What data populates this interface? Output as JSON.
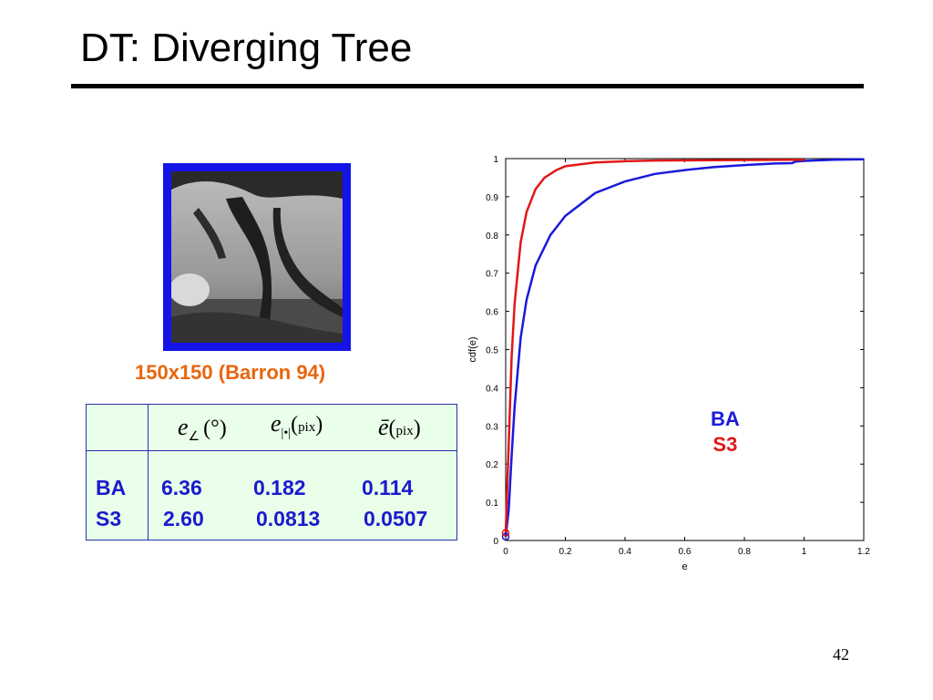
{
  "slide": {
    "title": "DT: Diverging Tree",
    "page_number": "42"
  },
  "image_caption": "150x150 (Barron 94)",
  "table": {
    "headers": [
      {
        "symbol": "e",
        "subscript": "∠",
        "unit": "(°)"
      },
      {
        "symbol": "e",
        "subscript": "|•|",
        "unit": "pix"
      },
      {
        "symbol": "ē",
        "subscript": "",
        "unit": "pix"
      }
    ],
    "rows": [
      {
        "label": "BA",
        "values": [
          "6.36",
          "0.182",
          "0.114"
        ]
      },
      {
        "label": "S3",
        "values": [
          "2.60",
          "0.0813",
          "0.0507"
        ]
      }
    ]
  },
  "colors": {
    "BA": "#1a1adc",
    "S3": "#e01818",
    "frame": "#1414e8",
    "caption": "#e8660e"
  },
  "chart_data": {
    "type": "line",
    "xlabel": "e",
    "ylabel": "cdf(e)",
    "xlim": [
      0,
      1.2
    ],
    "ylim": [
      0,
      1
    ],
    "xticks": [
      "0",
      "0.2",
      "0.4",
      "0.6",
      "0.8",
      "1",
      "1.2"
    ],
    "yticks": [
      "0",
      "0.1",
      "0.2",
      "0.3",
      "0.4",
      "0.5",
      "0.6",
      "0.7",
      "0.8",
      "0.9",
      "1"
    ],
    "series": [
      {
        "name": "BA",
        "color": "#1a1adc",
        "x": [
          0,
          0.01,
          0.02,
          0.03,
          0.05,
          0.07,
          0.1,
          0.15,
          0.2,
          0.3,
          0.4,
          0.5,
          0.6,
          0.7,
          0.8,
          0.9,
          0.96,
          0.97,
          1.0,
          1.1,
          1.2
        ],
        "y": [
          0.01,
          0.08,
          0.22,
          0.35,
          0.53,
          0.63,
          0.72,
          0.8,
          0.85,
          0.91,
          0.94,
          0.96,
          0.97,
          0.978,
          0.983,
          0.987,
          0.988,
          0.992,
          0.994,
          0.997,
          0.998
        ]
      },
      {
        "name": "S3",
        "color": "#e01818",
        "x": [
          0,
          0.01,
          0.02,
          0.03,
          0.05,
          0.07,
          0.1,
          0.13,
          0.17,
          0.2,
          0.3,
          0.4,
          0.5,
          0.7,
          1.0
        ],
        "y": [
          0.02,
          0.25,
          0.48,
          0.62,
          0.78,
          0.86,
          0.92,
          0.95,
          0.97,
          0.98,
          0.99,
          0.993,
          0.995,
          0.996,
          0.997
        ]
      }
    ],
    "legend": [
      "BA",
      "S3"
    ],
    "legend_position": "center-right"
  }
}
